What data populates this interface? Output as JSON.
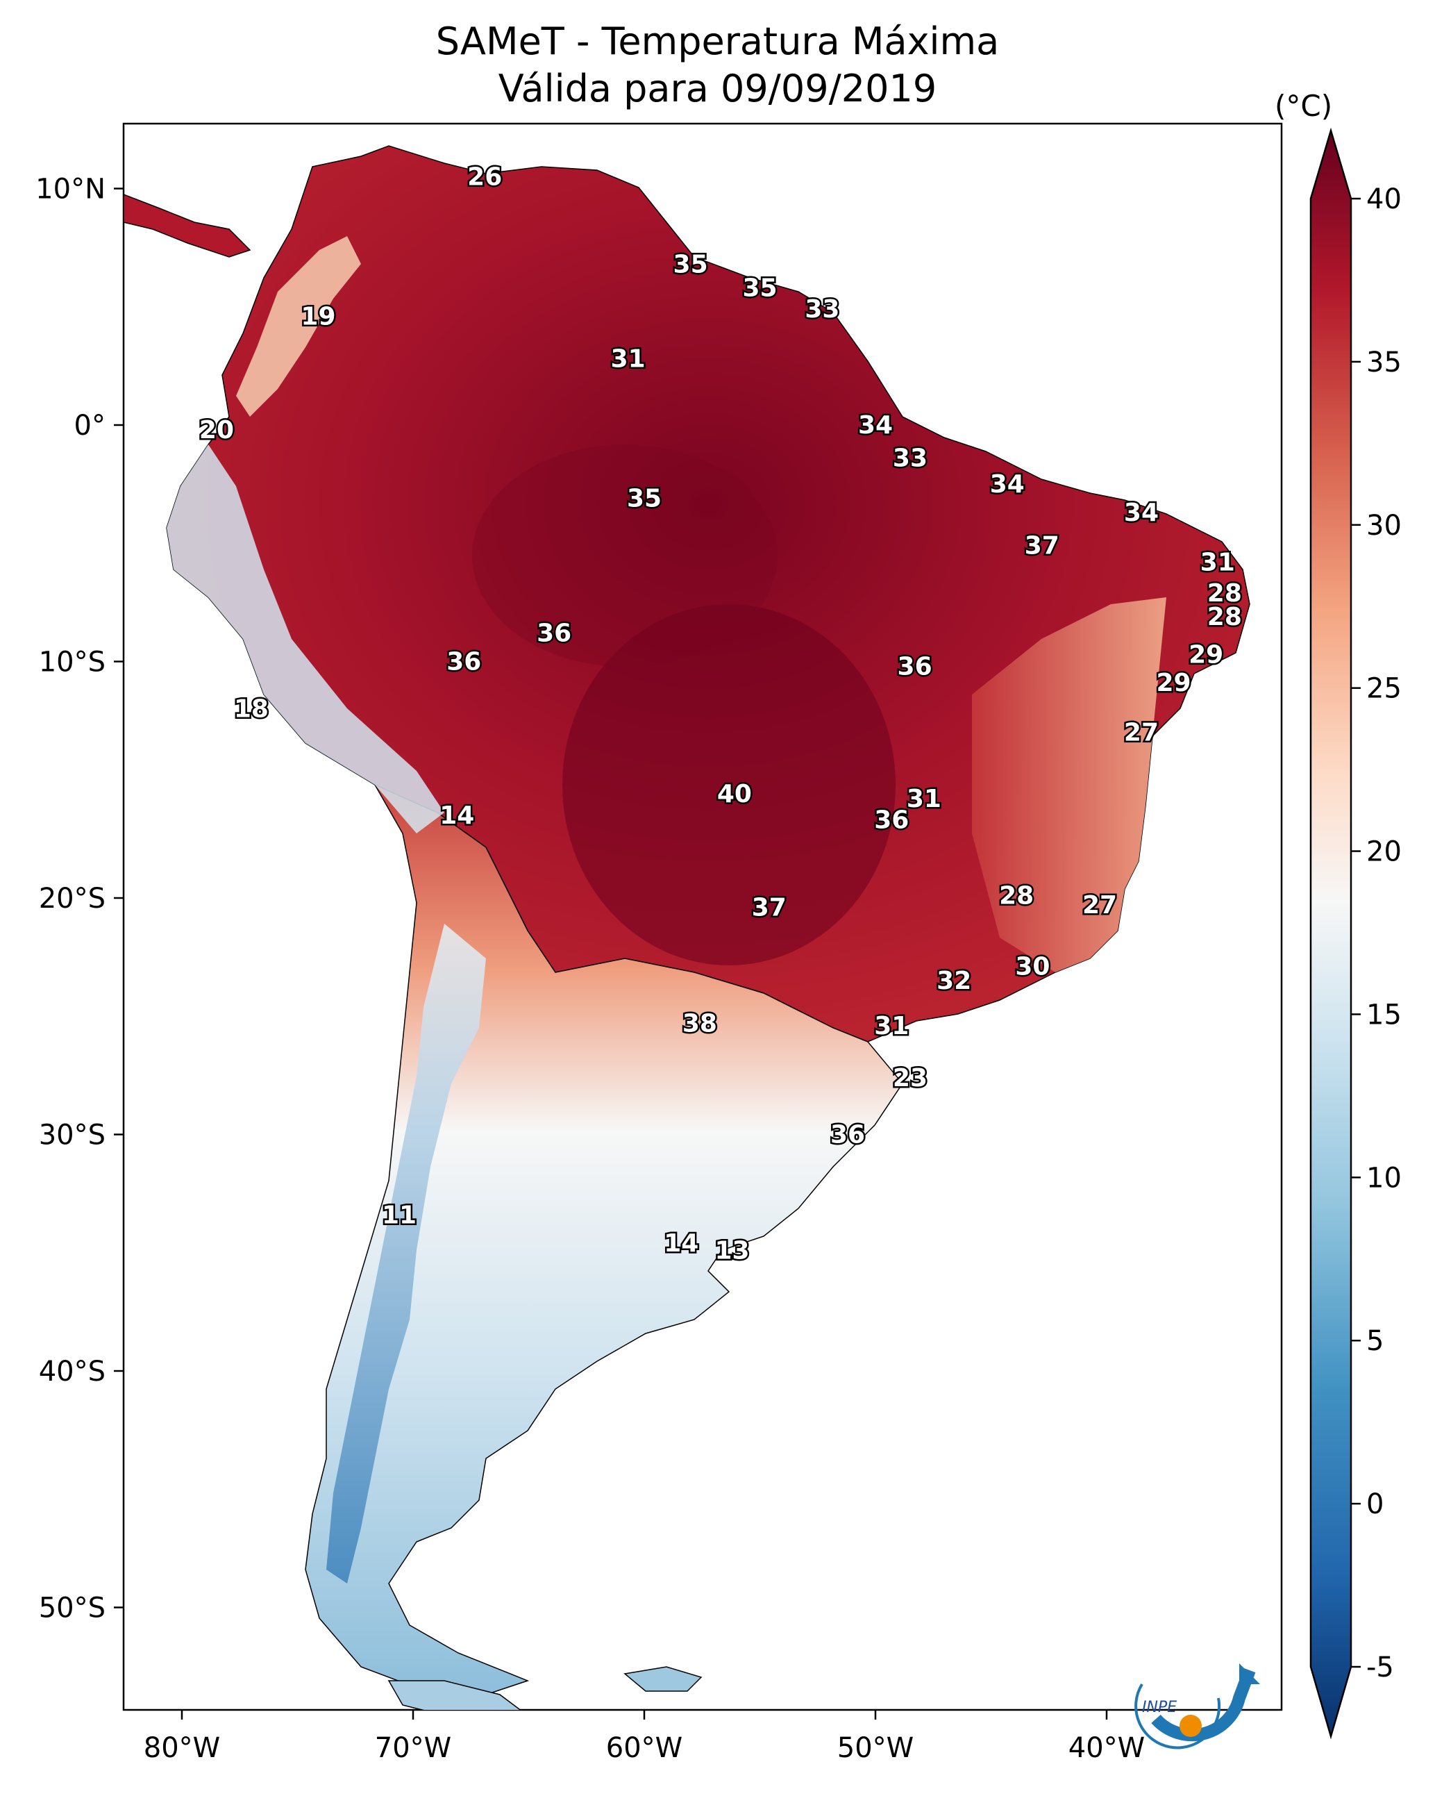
{
  "title_line1": "SAMeT - Temperatura Máxima",
  "title_line2": "Válida para 09/09/2019",
  "colorbar": {
    "unit": "(°C)",
    "ticks": [
      "40",
      "35",
      "30",
      "25",
      "20",
      "15",
      "10",
      "5",
      "0",
      "-5"
    ],
    "range": [
      -5,
      40
    ],
    "colors": [
      "#08306b",
      "#2166ac",
      "#4393c3",
      "#92c5de",
      "#d1e5f0",
      "#f7f7f7",
      "#fddbc7",
      "#f4a582",
      "#d6604d",
      "#b2182b",
      "#67001f"
    ]
  },
  "axes": {
    "lon_labels": [
      "80°W",
      "70°W",
      "60°W",
      "50°W",
      "40°W"
    ],
    "lat_labels": [
      "10°N",
      "0°",
      "10°S",
      "20°S",
      "30°S",
      "40°S",
      "50°S"
    ]
  },
  "logo": {
    "text": "INPE"
  },
  "city_values": [
    {
      "v": "26",
      "lon": -66.9,
      "lat": 10.5
    },
    {
      "v": "35",
      "lon": -58.0,
      "lat": 6.8
    },
    {
      "v": "35",
      "lon": -55.0,
      "lat": 5.8
    },
    {
      "v": "33",
      "lon": -52.3,
      "lat": 4.9
    },
    {
      "v": "19",
      "lon": -74.1,
      "lat": 4.6
    },
    {
      "v": "31",
      "lon": -60.7,
      "lat": 2.8
    },
    {
      "v": "34",
      "lon": -50.0,
      "lat": 0.0
    },
    {
      "v": "20",
      "lon": -78.5,
      "lat": -0.2
    },
    {
      "v": "33",
      "lon": -48.5,
      "lat": -1.4
    },
    {
      "v": "35",
      "lon": -60.0,
      "lat": -3.1
    },
    {
      "v": "34",
      "lon": -44.3,
      "lat": -2.5
    },
    {
      "v": "34",
      "lon": -38.5,
      "lat": -3.7
    },
    {
      "v": "37",
      "lon": -42.8,
      "lat": -5.1
    },
    {
      "v": "31",
      "lon": -35.2,
      "lat": -5.8
    },
    {
      "v": "28",
      "lon": -34.9,
      "lat": -7.1
    },
    {
      "v": "28",
      "lon": -34.9,
      "lat": -8.1
    },
    {
      "v": "36",
      "lon": -63.9,
      "lat": -8.8
    },
    {
      "v": "36",
      "lon": -67.8,
      "lat": -10.0
    },
    {
      "v": "36",
      "lon": -48.3,
      "lat": -10.2
    },
    {
      "v": "29",
      "lon": -35.7,
      "lat": -9.7
    },
    {
      "v": "29",
      "lon": -37.1,
      "lat": -10.9
    },
    {
      "v": "18",
      "lon": -77.0,
      "lat": -12.0
    },
    {
      "v": "27",
      "lon": -38.5,
      "lat": -13.0
    },
    {
      "v": "40",
      "lon": -56.1,
      "lat": -15.6
    },
    {
      "v": "31",
      "lon": -47.9,
      "lat": -15.8
    },
    {
      "v": "36",
      "lon": -49.3,
      "lat": -16.7
    },
    {
      "v": "14",
      "lon": -68.1,
      "lat": -16.5
    },
    {
      "v": "28",
      "lon": -43.9,
      "lat": -19.9
    },
    {
      "v": "27",
      "lon": -40.3,
      "lat": -20.3
    },
    {
      "v": "37",
      "lon": -54.6,
      "lat": -20.4
    },
    {
      "v": "30",
      "lon": -43.2,
      "lat": -22.9
    },
    {
      "v": "32",
      "lon": -46.6,
      "lat": -23.5
    },
    {
      "v": "38",
      "lon": -57.6,
      "lat": -25.3
    },
    {
      "v": "31",
      "lon": -49.3,
      "lat": -25.4
    },
    {
      "v": "23",
      "lon": -48.5,
      "lat": -27.6
    },
    {
      "v": "36",
      "lon": -51.2,
      "lat": -30.0
    },
    {
      "v": "11",
      "lon": -70.6,
      "lat": -33.4
    },
    {
      "v": "14",
      "lon": -58.4,
      "lat": -34.6
    },
    {
      "v": "13",
      "lon": -56.2,
      "lat": -34.9
    }
  ]
}
